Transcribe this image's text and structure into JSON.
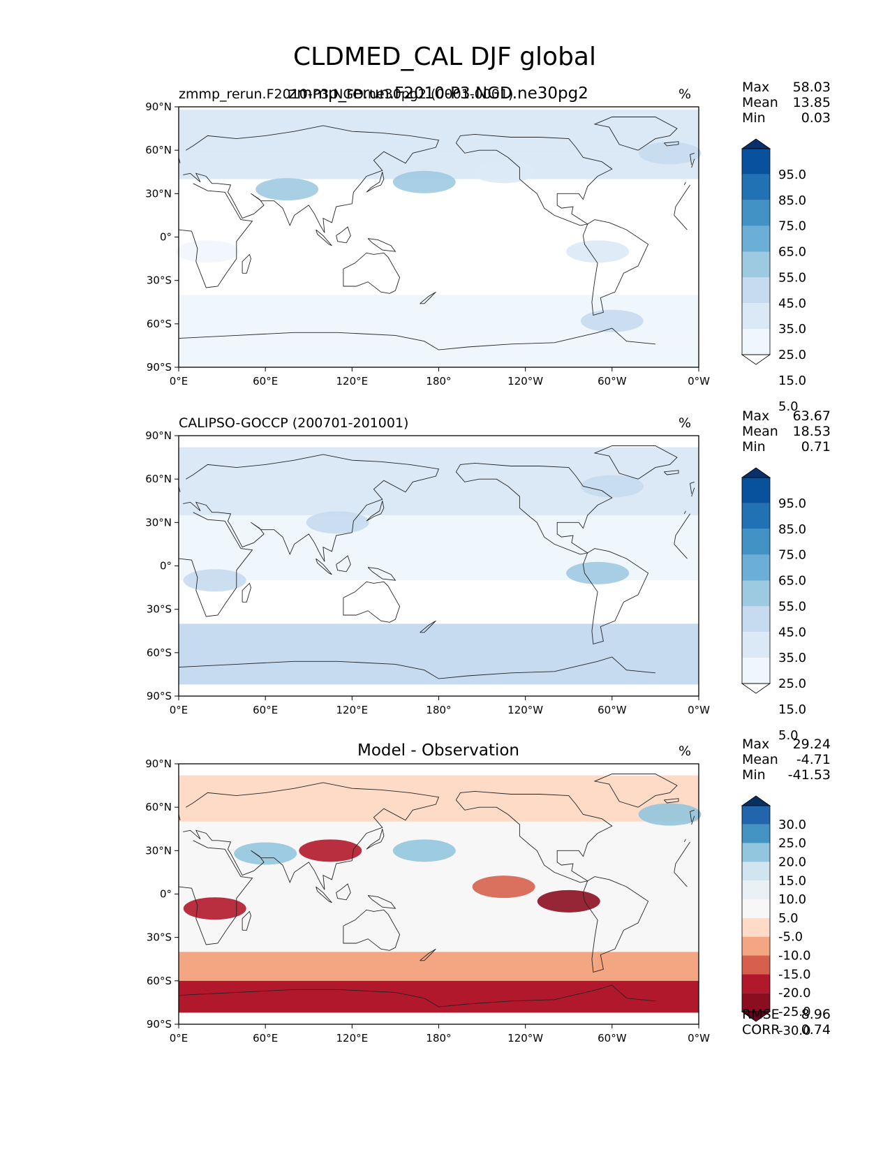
{
  "figure": {
    "title": "CLDMED_CAL DJF global"
  },
  "chart_data": [
    {
      "type": "heatmap",
      "title_left": "zmmp_rerun.F2010-P3.NGD.ne30pg2 (0001-0001)",
      "title_center": "zmmp_rerun.F2010-P3.NGD.ne30pg2",
      "units": "%",
      "xlabel": "",
      "ylabel": "",
      "xticks": [
        "0°E",
        "60°E",
        "120°E",
        "180°",
        "120°W",
        "60°W",
        "0°W"
      ],
      "yticks": [
        "90°N",
        "60°N",
        "30°N",
        "0°",
        "30°S",
        "60°S",
        "90°S"
      ],
      "xlim": [
        0,
        360
      ],
      "ylim": [
        -90,
        90
      ],
      "stats": [
        {
          "label": "Max",
          "value": "58.03"
        },
        {
          "label": "Mean",
          "value": "13.85"
        },
        {
          "label": "Min",
          "value": "0.03"
        }
      ],
      "colorbar": {
        "ticks": [
          "95.0",
          "85.0",
          "75.0",
          "65.0",
          "55.0",
          "45.0",
          "35.0",
          "25.0",
          "15.0",
          "5.0"
        ],
        "colors": [
          "#08306b",
          "#08519c",
          "#2171b5",
          "#4292c6",
          "#6baed6",
          "#9ecae1",
          "#c6dbef",
          "#dbe9f6",
          "#eff6fc",
          "#ffffff"
        ]
      },
      "field": "model",
      "bands": [
        {
          "lat": [
            88,
            58
          ],
          "value": 28
        },
        {
          "lat": [
            58,
            40
          ],
          "value": 26
        },
        {
          "lat": [
            40,
            20
          ],
          "value": 14
        },
        {
          "lat": [
            20,
            -10
          ],
          "value": 9
        },
        {
          "lat": [
            -10,
            -40
          ],
          "value": 8
        },
        {
          "lat": [
            -40,
            -75
          ],
          "value": 24
        },
        {
          "lat": [
            -75,
            -90
          ],
          "value": 20
        }
      ],
      "blobs": [
        {
          "lon": 170,
          "lat": 38,
          "value": 45
        },
        {
          "lon": 75,
          "lat": 33,
          "value": 45
        },
        {
          "lon": 340,
          "lat": 58,
          "value": 40
        },
        {
          "lon": 300,
          "lat": -58,
          "value": 40
        },
        {
          "lon": 290,
          "lat": -10,
          "value": 25
        },
        {
          "lon": 20,
          "lat": -10,
          "value": 20
        },
        {
          "lon": 225,
          "lat": 45,
          "value": 30
        }
      ]
    },
    {
      "type": "heatmap",
      "title_left": "CALIPSO-GOCCP (200701-201001)",
      "title_center": "",
      "units": "%",
      "xlabel": "",
      "ylabel": "",
      "xticks": [
        "0°E",
        "60°E",
        "120°E",
        "180°",
        "120°W",
        "60°W",
        "0°W"
      ],
      "yticks": [
        "90°N",
        "60°N",
        "30°N",
        "0°",
        "30°S",
        "60°S",
        "90°S"
      ],
      "xlim": [
        0,
        360
      ],
      "ylim": [
        -90,
        90
      ],
      "stats": [
        {
          "label": "Max",
          "value": "63.67"
        },
        {
          "label": "Mean",
          "value": "18.53"
        },
        {
          "label": "Min",
          "value": "0.71"
        }
      ],
      "colorbar": {
        "ticks": [
          "95.0",
          "85.0",
          "75.0",
          "65.0",
          "55.0",
          "45.0",
          "35.0",
          "25.0",
          "15.0",
          "5.0"
        ],
        "colors": [
          "#08306b",
          "#08519c",
          "#2171b5",
          "#4292c6",
          "#6baed6",
          "#9ecae1",
          "#c6dbef",
          "#dbe9f6",
          "#eff6fc",
          "#ffffff"
        ]
      },
      "field": "obs",
      "bands": [
        {
          "lat": [
            82,
            55
          ],
          "value": 30
        },
        {
          "lat": [
            55,
            35
          ],
          "value": 28
        },
        {
          "lat": [
            35,
            15
          ],
          "value": 18
        },
        {
          "lat": [
            15,
            -10
          ],
          "value": 20
        },
        {
          "lat": [
            -10,
            -40
          ],
          "value": 12
        },
        {
          "lat": [
            -40,
            -82
          ],
          "value": 40
        }
      ],
      "blobs": [
        {
          "lon": 290,
          "lat": -5,
          "value": 45
        },
        {
          "lon": 25,
          "lat": -10,
          "value": 40
        },
        {
          "lon": 110,
          "lat": 30,
          "value": 40
        },
        {
          "lon": 300,
          "lat": 55,
          "value": 35
        }
      ]
    },
    {
      "type": "heatmap",
      "title_left": "",
      "title_center": "Model - Observation",
      "units": "%",
      "xlabel": "",
      "ylabel": "",
      "xticks": [
        "0°E",
        "60°E",
        "120°E",
        "180°",
        "120°W",
        "60°W",
        "0°W"
      ],
      "yticks": [
        "90°N",
        "60°N",
        "30°N",
        "0°",
        "30°S",
        "60°S",
        "90°S"
      ],
      "xlim": [
        0,
        360
      ],
      "ylim": [
        -90,
        90
      ],
      "stats": [
        {
          "label": "Max",
          "value": "29.24"
        },
        {
          "label": "Mean",
          "value": "-4.71"
        },
        {
          "label": "Min",
          "value": "-41.53"
        }
      ],
      "metrics": [
        {
          "label": "RMSE",
          "value": "8.96"
        },
        {
          "label": "CORR",
          "value": "0.74"
        }
      ],
      "colorbar": {
        "ticks": [
          "30.0",
          "25.0",
          "20.0",
          "15.0",
          "10.0",
          "5.0",
          "-5.0",
          "-10.0",
          "-15.0",
          "-20.0",
          "-25.0",
          "-30.0"
        ],
        "colors": [
          "#053061",
          "#2166ac",
          "#4393c3",
          "#92c5de",
          "#d1e5f0",
          "#e9f1f5",
          "#f7f7f7",
          "#fddbc7",
          "#f4a582",
          "#d6604d",
          "#b2182b",
          "#8b0d20",
          "#67001f"
        ]
      },
      "field": "diff",
      "bands": [
        {
          "lat": [
            82,
            50
          ],
          "value": -6
        },
        {
          "lat": [
            50,
            20
          ],
          "value": -4
        },
        {
          "lat": [
            20,
            -40
          ],
          "value": -2
        },
        {
          "lat": [
            -40,
            -60
          ],
          "value": -12
        },
        {
          "lat": [
            -60,
            -82
          ],
          "value": -22
        }
      ],
      "blobs": [
        {
          "lon": 170,
          "lat": 30,
          "value": 18
        },
        {
          "lon": 270,
          "lat": -5,
          "value": -28
        },
        {
          "lon": 25,
          "lat": -10,
          "value": -22
        },
        {
          "lon": 105,
          "lat": 30,
          "value": -25
        },
        {
          "lon": 60,
          "lat": 28,
          "value": 16
        },
        {
          "lon": 340,
          "lat": 55,
          "value": 15
        },
        {
          "lon": 225,
          "lat": 5,
          "value": -18
        }
      ]
    }
  ]
}
